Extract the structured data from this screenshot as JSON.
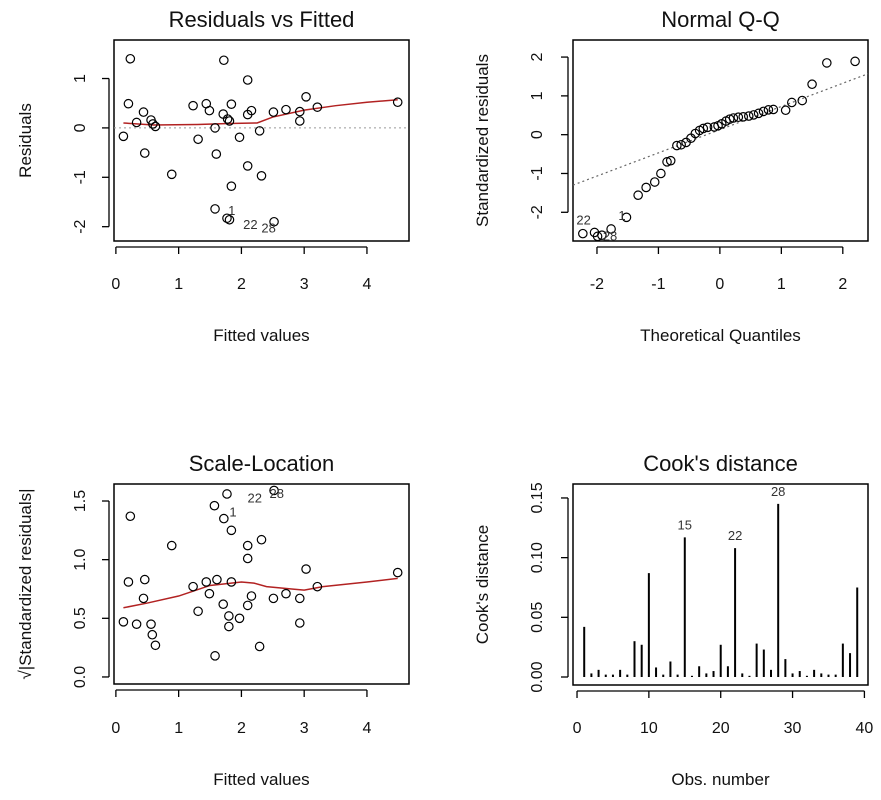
{
  "chart_data": [
    {
      "type": "scatter",
      "title": "Residuals vs Fitted",
      "xlabel": "Fitted values",
      "ylabel": "Residuals",
      "xlim": [
        -0.03,
        4.67
      ],
      "ylim": [
        -2.29,
        1.78
      ],
      "xticks": [
        "0",
        "1",
        "2",
        "3",
        "4"
      ],
      "yticks": [
        "-2",
        "-1",
        "0",
        "1"
      ],
      "grid": false,
      "colors": {
        "points": "#000000",
        "smooth": "#b22222",
        "reference": "#999999"
      },
      "reference_line": {
        "orientation": "horizontal",
        "value": 0,
        "style": "dotted"
      },
      "points": [
        [
          0.12,
          -0.17
        ],
        [
          0.23,
          1.4
        ],
        [
          0.2,
          0.49
        ],
        [
          0.33,
          0.11
        ],
        [
          0.44,
          0.32
        ],
        [
          0.46,
          -0.51
        ],
        [
          0.56,
          0.16
        ],
        [
          0.59,
          0.08
        ],
        [
          0.63,
          0.03
        ],
        [
          0.89,
          -0.94
        ],
        [
          1.23,
          0.45
        ],
        [
          1.31,
          -0.23
        ],
        [
          1.44,
          0.49
        ],
        [
          1.49,
          0.35
        ],
        [
          1.58,
          0.0
        ],
        [
          1.6,
          -0.53
        ],
        [
          1.58,
          -1.64
        ],
        [
          1.72,
          1.37
        ],
        [
          1.71,
          0.28
        ],
        [
          1.77,
          -1.83
        ],
        [
          1.81,
          -1.86
        ],
        [
          1.78,
          0.18
        ],
        [
          1.81,
          0.14
        ],
        [
          1.84,
          0.48
        ],
        [
          1.84,
          -1.18
        ],
        [
          1.97,
          -0.19
        ],
        [
          2.1,
          0.97
        ],
        [
          2.1,
          0.27
        ],
        [
          2.1,
          -0.77
        ],
        [
          2.16,
          0.35
        ],
        [
          2.29,
          -0.06
        ],
        [
          2.32,
          -0.97
        ],
        [
          2.52,
          -1.9
        ],
        [
          2.51,
          0.32
        ],
        [
          2.71,
          0.37
        ],
        [
          2.93,
          0.33
        ],
        [
          2.93,
          0.14
        ],
        [
          3.03,
          0.63
        ],
        [
          3.21,
          0.42
        ],
        [
          4.49,
          0.52
        ]
      ],
      "smooth": [
        [
          0.12,
          0.1
        ],
        [
          0.6,
          0.06
        ],
        [
          1.3,
          0.07
        ],
        [
          1.8,
          0.09
        ],
        [
          2.25,
          0.1
        ],
        [
          2.5,
          0.22
        ],
        [
          3.0,
          0.36
        ],
        [
          3.5,
          0.45
        ],
        [
          4.0,
          0.52
        ],
        [
          4.49,
          0.57
        ]
      ],
      "annotations": [
        {
          "text": "1",
          "x": 1.74,
          "y": -1.68
        },
        {
          "text": "22",
          "x": 1.98,
          "y": -1.97
        },
        {
          "text": "28",
          "x": 2.27,
          "y": -2.04
        }
      ]
    },
    {
      "type": "scatter",
      "title": "Normal Q-Q",
      "xlabel": "Theoretical Quantiles",
      "ylabel": "Standardized residuals",
      "xlim": [
        -2.39,
        2.41
      ],
      "ylim": [
        -2.74,
        2.44
      ],
      "xticks": [
        "-2",
        "-1",
        "0",
        "1",
        "2"
      ],
      "yticks": [
        "-2",
        "-1",
        "0",
        "1",
        "2"
      ],
      "grid": false,
      "colors": {
        "points": "#000000",
        "reference": "#666666"
      },
      "reference_line": {
        "orientation": "diagonal",
        "from": [
          -2.39,
          -1.3
        ],
        "to": [
          2.41,
          1.57
        ],
        "style": "dotted"
      },
      "points": [
        [
          -2.23,
          -2.55
        ],
        [
          -2.04,
          -2.52
        ],
        [
          -1.99,
          -2.62
        ],
        [
          -1.92,
          -2.59
        ],
        [
          -1.77,
          -2.43
        ],
        [
          -1.52,
          -2.13
        ],
        [
          -1.33,
          -1.56
        ],
        [
          -1.2,
          -1.36
        ],
        [
          -1.06,
          -1.22
        ],
        [
          -0.96,
          -1.0
        ],
        [
          -0.86,
          -0.7
        ],
        [
          -0.8,
          -0.67
        ],
        [
          -0.7,
          -0.28
        ],
        [
          -0.63,
          -0.26
        ],
        [
          -0.55,
          -0.2
        ],
        [
          -0.47,
          -0.09
        ],
        [
          -0.4,
          0.03
        ],
        [
          -0.33,
          0.11
        ],
        [
          -0.27,
          0.16
        ],
        [
          -0.2,
          0.19
        ],
        [
          -0.09,
          0.2
        ],
        [
          -0.03,
          0.23
        ],
        [
          0.03,
          0.28
        ],
        [
          0.1,
          0.35
        ],
        [
          0.16,
          0.4
        ],
        [
          0.22,
          0.43
        ],
        [
          0.3,
          0.45
        ],
        [
          0.38,
          0.46
        ],
        [
          0.47,
          0.48
        ],
        [
          0.55,
          0.51
        ],
        [
          0.63,
          0.55
        ],
        [
          0.71,
          0.6
        ],
        [
          0.79,
          0.64
        ],
        [
          0.87,
          0.65
        ],
        [
          1.07,
          0.63
        ],
        [
          1.17,
          0.83
        ],
        [
          1.34,
          0.88
        ],
        [
          1.5,
          1.3
        ],
        [
          1.74,
          1.85
        ],
        [
          2.2,
          1.89
        ]
      ],
      "annotations": [
        {
          "text": "22",
          "x": -2.05,
          "y": -2.42
        },
        {
          "text": "28",
          "x": -1.97,
          "y": -2.62
        },
        {
          "text": "1",
          "x": -1.7,
          "y": -2.1
        }
      ]
    },
    {
      "type": "scatter",
      "title": "Scale-Location",
      "xlabel": "Fitted values",
      "ylabel": "√|Standardized residuals|",
      "xlim": [
        -0.03,
        4.67
      ],
      "ylim": [
        -0.06,
        1.645
      ],
      "xticks": [
        "0",
        "1",
        "2",
        "3",
        "4"
      ],
      "yticks": [
        "0.0",
        "0.5",
        "1.0",
        "1.5"
      ],
      "grid": false,
      "colors": {
        "points": "#000000",
        "smooth": "#b22222"
      },
      "points": [
        [
          0.12,
          0.47
        ],
        [
          0.23,
          1.37
        ],
        [
          0.2,
          0.81
        ],
        [
          0.33,
          0.45
        ],
        [
          0.46,
          0.83
        ],
        [
          0.44,
          0.67
        ],
        [
          0.56,
          0.45
        ],
        [
          0.58,
          0.36
        ],
        [
          0.63,
          0.27
        ],
        [
          0.89,
          1.12
        ],
        [
          1.23,
          0.77
        ],
        [
          1.31,
          0.56
        ],
        [
          1.44,
          0.81
        ],
        [
          1.49,
          0.71
        ],
        [
          1.58,
          0.18
        ],
        [
          1.57,
          1.46
        ],
        [
          1.61,
          0.83
        ],
        [
          1.72,
          1.35
        ],
        [
          1.71,
          0.62
        ],
        [
          1.77,
          1.56
        ],
        [
          1.8,
          0.52
        ],
        [
          1.8,
          0.43
        ],
        [
          1.84,
          0.81
        ],
        [
          1.84,
          1.25
        ],
        [
          1.97,
          0.5
        ],
        [
          2.1,
          1.12
        ],
        [
          2.1,
          1.01
        ],
        [
          2.1,
          0.61
        ],
        [
          2.16,
          0.69
        ],
        [
          2.29,
          0.26
        ],
        [
          2.32,
          1.17
        ],
        [
          2.52,
          1.59
        ],
        [
          2.51,
          0.67
        ],
        [
          2.71,
          0.71
        ],
        [
          2.93,
          0.67
        ],
        [
          2.93,
          0.46
        ],
        [
          3.03,
          0.92
        ],
        [
          3.21,
          0.77
        ],
        [
          4.49,
          0.89
        ]
      ],
      "smooth": [
        [
          0.12,
          0.59
        ],
        [
          0.5,
          0.63
        ],
        [
          1.0,
          0.69
        ],
        [
          1.5,
          0.78
        ],
        [
          2.0,
          0.81
        ],
        [
          2.2,
          0.8
        ],
        [
          2.4,
          0.77
        ],
        [
          2.8,
          0.75
        ],
        [
          3.0,
          0.74
        ],
        [
          3.3,
          0.77
        ],
        [
          4.0,
          0.81
        ],
        [
          4.49,
          0.84
        ]
      ],
      "annotations": [
        {
          "text": "1",
          "x": 1.76,
          "y": 1.4
        },
        {
          "text": "22",
          "x": 2.05,
          "y": 1.52
        },
        {
          "text": "28",
          "x": 2.4,
          "y": 1.56
        }
      ]
    },
    {
      "type": "bar",
      "style": "needle",
      "title": "Cook's distance",
      "xlabel": "Obs. number",
      "ylabel": "Cook's distance",
      "xlim": [
        -0.56,
        40.5
      ],
      "ylim": [
        -0.0067,
        0.1617
      ],
      "xticks": [
        "0",
        "10",
        "20",
        "30",
        "40"
      ],
      "yticks": [
        "0.00",
        "0.05",
        "0.10",
        "0.15"
      ],
      "grid": false,
      "colors": {
        "bars": "#000000"
      },
      "x": [
        1,
        2,
        3,
        4,
        5,
        6,
        7,
        8,
        9,
        10,
        11,
        12,
        13,
        14,
        15,
        16,
        17,
        18,
        19,
        20,
        21,
        22,
        23,
        24,
        25,
        26,
        27,
        28,
        29,
        30,
        31,
        32,
        33,
        34,
        35,
        36,
        37,
        38,
        39
      ],
      "values": [
        0.042,
        0.003,
        0.006,
        0.002,
        0.002,
        0.006,
        0.002,
        0.03,
        0.027,
        0.087,
        0.008,
        0.002,
        0.013,
        0.002,
        0.117,
        0.001,
        0.009,
        0.003,
        0.005,
        0.027,
        0.009,
        0.108,
        0.003,
        0.001,
        0.028,
        0.023,
        0.006,
        0.145,
        0.015,
        0.003,
        0.005,
        0.001,
        0.006,
        0.003,
        0.002,
        0.002,
        0.028,
        0.02,
        0.075
      ],
      "annotations": [
        {
          "text": "15",
          "x": 15,
          "y": 0.117
        },
        {
          "text": "22",
          "x": 22,
          "y": 0.108
        },
        {
          "text": "28",
          "x": 28,
          "y": 0.145
        }
      ]
    }
  ]
}
